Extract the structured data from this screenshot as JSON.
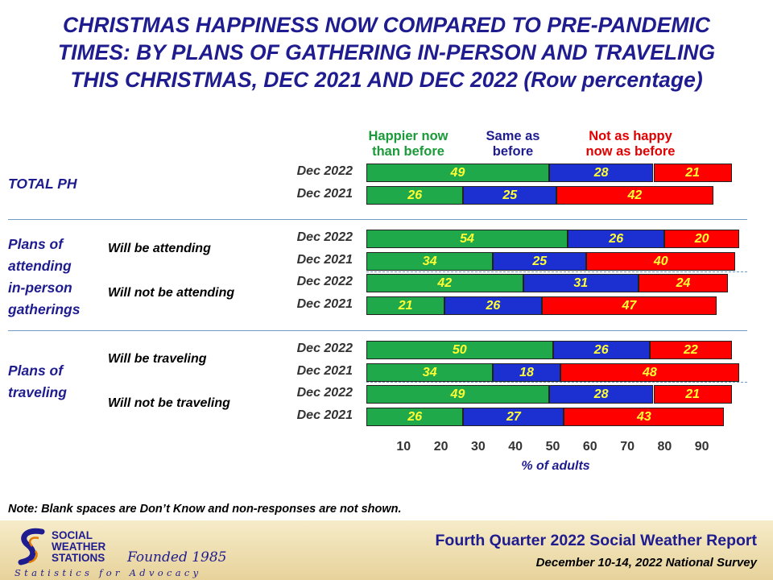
{
  "title_lines": [
    "CHRISTMAS HAPPINESS NOW COMPARED TO PRE-PANDEMIC",
    "TIMES: BY PLANS OF GATHERING IN-PERSON AND TRAVELING",
    "THIS CHRISTMAS, DEC 2021 AND DEC 2022 (Row percentage)"
  ],
  "colors": {
    "happier": "#1fa94b",
    "same": "#1c2fd1",
    "not_happy": "#ff0000",
    "title": "#1f1c8f",
    "value_label": "#ffff33"
  },
  "chart_data": {
    "type": "bar",
    "orientation": "horizontal",
    "stacked": true,
    "legend_placement": "top",
    "xlabel": "% of adults",
    "xlim": [
      0,
      100
    ],
    "xticks": [
      10,
      20,
      30,
      40,
      50,
      60,
      70,
      80,
      90
    ],
    "series_names": [
      "Happier now than before",
      "Same as before",
      "Not as happy now as before"
    ],
    "legend": [
      {
        "lines": [
          "Happier now",
          "than before"
        ],
        "color": "#1a9a38"
      },
      {
        "lines": [
          "Same as",
          "before"
        ],
        "color": "#1f1c8f"
      },
      {
        "lines": [
          "Not as happy",
          "now as before"
        ],
        "color": "#e00000"
      }
    ],
    "groups": [
      {
        "label_lines": [
          "TOTAL PH"
        ],
        "subgroups": [
          {
            "label": "",
            "rows": [
              {
                "period": "Dec 2022",
                "values": [
                  49,
                  28,
                  21
                ]
              },
              {
                "period": "Dec 2021",
                "values": [
                  26,
                  25,
                  42
                ]
              }
            ]
          }
        ]
      },
      {
        "label_lines": [
          "Plans of",
          "attending",
          "in-person",
          "gatherings"
        ],
        "subgroups": [
          {
            "label": "Will be attending",
            "rows": [
              {
                "period": "Dec 2022",
                "values": [
                  54,
                  26,
                  20
                ]
              },
              {
                "period": "Dec 2021",
                "values": [
                  34,
                  25,
                  40
                ]
              }
            ]
          },
          {
            "label": "Will not be attending",
            "rows": [
              {
                "period": "Dec 2022",
                "values": [
                  42,
                  31,
                  24
                ]
              },
              {
                "period": "Dec 2021",
                "values": [
                  21,
                  26,
                  47
                ]
              }
            ]
          }
        ]
      },
      {
        "label_lines": [
          "Plans of",
          "traveling"
        ],
        "subgroups": [
          {
            "label": "Will be traveling",
            "rows": [
              {
                "period": "Dec 2022",
                "values": [
                  50,
                  26,
                  22
                ]
              },
              {
                "period": "Dec 2021",
                "values": [
                  34,
                  18,
                  48
                ]
              }
            ]
          },
          {
            "label": "Will not be traveling",
            "rows": [
              {
                "period": "Dec 2022",
                "values": [
                  49,
                  28,
                  21
                ]
              },
              {
                "period": "Dec 2021",
                "values": [
                  26,
                  27,
                  43
                ]
              }
            ]
          }
        ]
      }
    ]
  },
  "note": "Note: Blank spaces are Don’t Know and non-responses are not shown.",
  "footer": {
    "logo_lines": [
      "SOCIAL",
      "WEATHER",
      "STATIONS"
    ],
    "founded": "Founded 1985",
    "tagline": "Statistics for Advocacy",
    "report_title": "Fourth Quarter 2022 Social Weather Report",
    "report_subtitle": "December 10-14, 2022 National Survey"
  }
}
